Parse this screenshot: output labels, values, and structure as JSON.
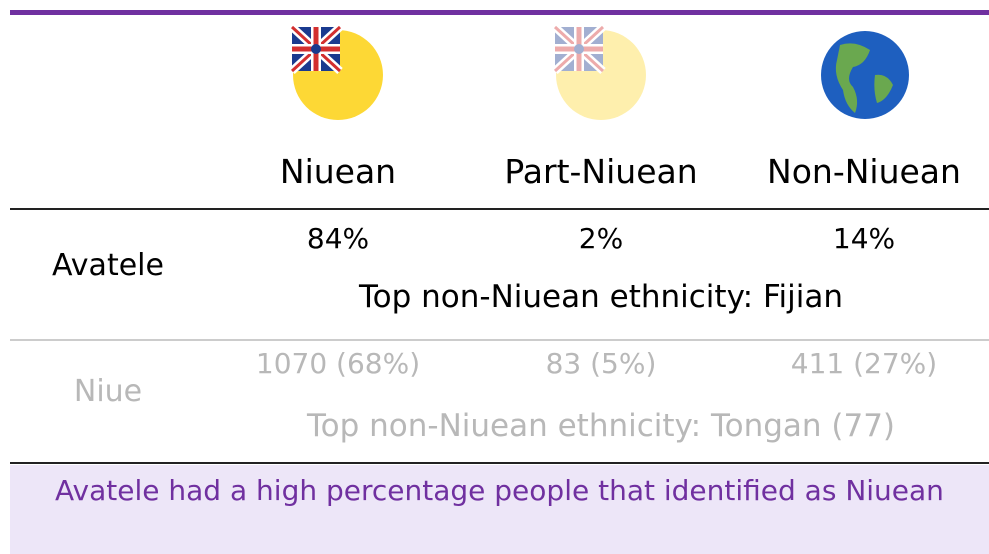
{
  "columns": [
    "Niuean",
    "Part-Niuean",
    "Non-Niuean"
  ],
  "rows": [
    {
      "label": "Avatele",
      "values": [
        "84%",
        "2%",
        "14%"
      ],
      "note": "Top non-Niuean ethnicity: Fijian"
    },
    {
      "label": "Niue",
      "values": [
        "1070 (68%)",
        "83 (5%)",
        "411 (27%)"
      ],
      "note": "Top non-Niuean ethnicity: Tongan (77)"
    }
  ],
  "footer": "Avatele had a high percentage people that identified as Niuean"
}
